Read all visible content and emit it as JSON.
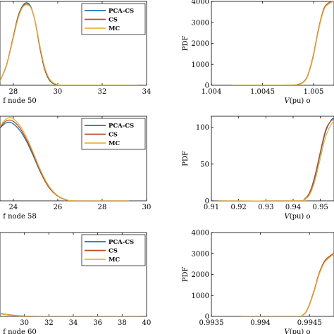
{
  "colors": {
    "pca_cs": "#1f6fb2",
    "cs": "#b5502a",
    "mc": "#e9b33c"
  },
  "chart_data": [
    {
      "type": "line",
      "xlabel": "f node 50",
      "ylabel": "",
      "xlim": [
        27.4,
        34
      ],
      "ylim": [
        0,
        1
      ],
      "xticks": [
        28,
        30,
        32,
        34
      ],
      "xtick_labels": [
        "28",
        "30",
        "32",
        "34"
      ],
      "yticks": [],
      "ytick_labels": [],
      "legend": {
        "placement": "top-right",
        "entries": [
          "PCA-CS",
          "CS",
          "MC"
        ]
      },
      "series": [
        {
          "name": "PCA-CS",
          "x": [
            27.4,
            27.7,
            28.0,
            28.2,
            28.4,
            28.6,
            28.8,
            29.0,
            29.2,
            29.4,
            29.6,
            29.8,
            30.0,
            30.3,
            33.6
          ],
          "y": [
            0.05,
            0.24,
            0.58,
            0.81,
            0.94,
            0.985,
            0.93,
            0.74,
            0.44,
            0.2,
            0.07,
            0.02,
            0.006,
            0.0,
            0.0
          ]
        },
        {
          "name": "CS",
          "x": [
            27.4,
            27.7,
            28.0,
            28.2,
            28.4,
            28.6,
            28.8,
            29.0,
            29.2,
            29.4,
            29.6,
            29.8,
            30.0,
            30.3,
            33.6
          ],
          "y": [
            0.05,
            0.25,
            0.58,
            0.8,
            0.93,
            0.97,
            0.92,
            0.74,
            0.45,
            0.21,
            0.08,
            0.025,
            0.007,
            0.0,
            0.0
          ]
        },
        {
          "name": "MC",
          "x": [
            27.4,
            27.7,
            28.0,
            28.2,
            28.4,
            28.6,
            28.8,
            29.0,
            29.2,
            29.4,
            29.6,
            29.8,
            30.0,
            30.3,
            33.6
          ],
          "y": [
            0.05,
            0.24,
            0.56,
            0.78,
            0.92,
            0.96,
            0.92,
            0.75,
            0.47,
            0.23,
            0.09,
            0.03,
            0.008,
            0.0,
            0.0
          ]
        }
      ]
    },
    {
      "type": "line",
      "xlabel": "V(pu) o",
      "ylabel": "PDF",
      "xlim": [
        1.004,
        1.0052
      ],
      "ylim": [
        0,
        4000
      ],
      "xticks": [
        1.004,
        1.0045,
        1.005
      ],
      "xtick_labels": [
        "1.004",
        "1.0045",
        "1.005"
      ],
      "yticks": [
        0,
        1000,
        2000,
        3000,
        4000
      ],
      "ytick_labels": [
        "0",
        "1000",
        "2000",
        "3000",
        "4000"
      ],
      "series": [
        {
          "name": "PCA-CS",
          "x": [
            1.0042,
            1.0047,
            1.00485,
            1.00492,
            1.00496,
            1.005,
            1.00504,
            1.00508,
            1.00512,
            1.0052
          ],
          "y": [
            0,
            0,
            40,
            250,
            700,
            1450,
            2450,
            3300,
            3800,
            4050
          ]
        },
        {
          "name": "CS",
          "x": [
            1.0042,
            1.0047,
            1.00485,
            1.00492,
            1.00496,
            1.005,
            1.00504,
            1.00508,
            1.00512,
            1.0052
          ],
          "y": [
            0,
            0,
            45,
            260,
            720,
            1480,
            2480,
            3320,
            3820,
            4060
          ]
        },
        {
          "name": "MC",
          "x": [
            1.0042,
            1.0047,
            1.00485,
            1.00492,
            1.00496,
            1.005,
            1.00504,
            1.00508,
            1.00512,
            1.0052
          ],
          "y": [
            0,
            0,
            35,
            230,
            670,
            1400,
            2400,
            3250,
            3760,
            4020
          ]
        }
      ]
    },
    {
      "type": "line",
      "xlabel": "f node 58",
      "ylabel": "",
      "xlim": [
        23.4,
        30
      ],
      "ylim": [
        0,
        1
      ],
      "xticks": [
        24,
        26,
        28,
        30
      ],
      "xtick_labels": [
        "24",
        "26",
        "28",
        "30"
      ],
      "yticks": [],
      "ytick_labels": [],
      "legend": {
        "placement": "top-right",
        "entries": [
          "PCA-CS",
          "CS",
          "MC"
        ]
      },
      "series": [
        {
          "name": "PCA-CS",
          "x": [
            23.4,
            23.6,
            23.8,
            24.0,
            24.3,
            24.6,
            24.9,
            25.2,
            25.5,
            25.8,
            26.1,
            26.4,
            26.8,
            29.2
          ],
          "y": [
            0.86,
            0.91,
            0.93,
            0.91,
            0.83,
            0.7,
            0.53,
            0.35,
            0.2,
            0.1,
            0.04,
            0.012,
            0.0,
            0.0
          ]
        },
        {
          "name": "CS",
          "x": [
            23.4,
            23.6,
            23.8,
            24.0,
            24.3,
            24.6,
            24.9,
            25.2,
            25.5,
            25.8,
            26.1,
            26.4,
            26.8,
            29.2
          ],
          "y": [
            0.87,
            0.93,
            0.955,
            0.94,
            0.86,
            0.72,
            0.55,
            0.36,
            0.2,
            0.1,
            0.04,
            0.012,
            0.0,
            0.0
          ]
        },
        {
          "name": "MC",
          "x": [
            23.4,
            23.6,
            23.8,
            24.0,
            24.3,
            24.6,
            24.9,
            25.2,
            25.5,
            25.8,
            26.1,
            26.4,
            26.8,
            29.2
          ],
          "y": [
            0.88,
            0.95,
            0.985,
            0.97,
            0.89,
            0.75,
            0.57,
            0.38,
            0.22,
            0.11,
            0.045,
            0.015,
            0.0,
            0.0
          ]
        }
      ]
    },
    {
      "type": "line",
      "xlabel": "V(pu) o",
      "ylabel": "PDF",
      "xlim": [
        0.91,
        0.955
      ],
      "ylim": [
        0,
        115
      ],
      "xticks": [
        0.91,
        0.92,
        0.93,
        0.94,
        0.95
      ],
      "xtick_labels": [
        "0.91",
        "0.92",
        "0.93",
        "0.94",
        "0.95"
      ],
      "yticks": [
        0,
        50,
        100
      ],
      "ytick_labels": [
        "0",
        "50",
        "100"
      ],
      "series": [
        {
          "name": "PCA-CS",
          "x": [
            0.9125,
            0.942,
            0.944,
            0.946,
            0.948,
            0.95,
            0.952,
            0.954,
            0.955
          ],
          "y": [
            0,
            0,
            2,
            10,
            32,
            65,
            95,
            110,
            112
          ]
        },
        {
          "name": "CS",
          "x": [
            0.9125,
            0.942,
            0.944,
            0.946,
            0.948,
            0.95,
            0.952,
            0.954,
            0.955
          ],
          "y": [
            0,
            0,
            2,
            11,
            34,
            67,
            97,
            109,
            110
          ]
        },
        {
          "name": "MC",
          "x": [
            0.9125,
            0.942,
            0.944,
            0.946,
            0.948,
            0.95,
            0.952,
            0.954,
            0.955
          ],
          "y": [
            0,
            0,
            1.5,
            8,
            27,
            58,
            88,
            104,
            108
          ]
        }
      ]
    },
    {
      "type": "line",
      "xlabel": "f node 60",
      "ylabel": "",
      "xlim": [
        28,
        40
      ],
      "ylim": [
        0,
        1
      ],
      "xticks": [
        30,
        32,
        34,
        36,
        38,
        40
      ],
      "xtick_labels": [
        "30",
        "32",
        "34",
        "36",
        "38",
        "40"
      ],
      "yticks": [],
      "ytick_labels": [],
      "legend": {
        "placement": "top-right",
        "entries": [
          "PCA-CS",
          "CS",
          "MC"
        ]
      },
      "series": [
        {
          "name": "PCA-CS",
          "x": [
            28.0,
            29.0,
            30.0,
            31.0,
            33.5,
            39.5
          ],
          "y": [
            0.03,
            0.012,
            0.003,
            0.0,
            0.0,
            0.0
          ]
        },
        {
          "name": "CS",
          "x": [
            28.0,
            29.0,
            30.0,
            31.0,
            33.5,
            39.5
          ],
          "y": [
            0.035,
            0.014,
            0.004,
            0.0,
            0.0,
            0.0
          ]
        },
        {
          "name": "MC",
          "x": [
            28.0,
            29.0,
            30.0,
            31.0,
            33.5,
            39.5
          ],
          "y": [
            0.03,
            0.012,
            0.003,
            0.0,
            0.0,
            0.0
          ]
        }
      ]
    },
    {
      "type": "line",
      "xlabel": "V(pu) o",
      "ylabel": "PDF",
      "xlim": [
        0.9935,
        0.99475
      ],
      "ylim": [
        0,
        4000
      ],
      "xticks": [
        0.9935,
        0.994,
        0.9945
      ],
      "xtick_labels": [
        "0.9935",
        "0.994",
        "0.9945"
      ],
      "yticks": [
        0,
        1000,
        2000,
        3000,
        4000
      ],
      "ytick_labels": [
        "0",
        "1000",
        "2000",
        "3000",
        "4000"
      ],
      "series": [
        {
          "name": "PCA-CS",
          "x": [
            0.9938,
            0.99438,
            0.99442,
            0.99446,
            0.9945,
            0.99455,
            0.9946,
            0.99466,
            0.99475
          ],
          "y": [
            0,
            0,
            30,
            170,
            550,
            1250,
            2050,
            2650,
            3000
          ]
        },
        {
          "name": "CS",
          "x": [
            0.9938,
            0.99438,
            0.99442,
            0.99446,
            0.9945,
            0.99455,
            0.9946,
            0.99466,
            0.99475
          ],
          "y": [
            0,
            0,
            32,
            180,
            570,
            1280,
            2080,
            2680,
            3020
          ]
        },
        {
          "name": "MC",
          "x": [
            0.9938,
            0.99438,
            0.99442,
            0.99446,
            0.9945,
            0.99455,
            0.9946,
            0.99466,
            0.99475
          ],
          "y": [
            0,
            0,
            28,
            160,
            530,
            1220,
            2010,
            2610,
            2970
          ]
        }
      ]
    }
  ]
}
